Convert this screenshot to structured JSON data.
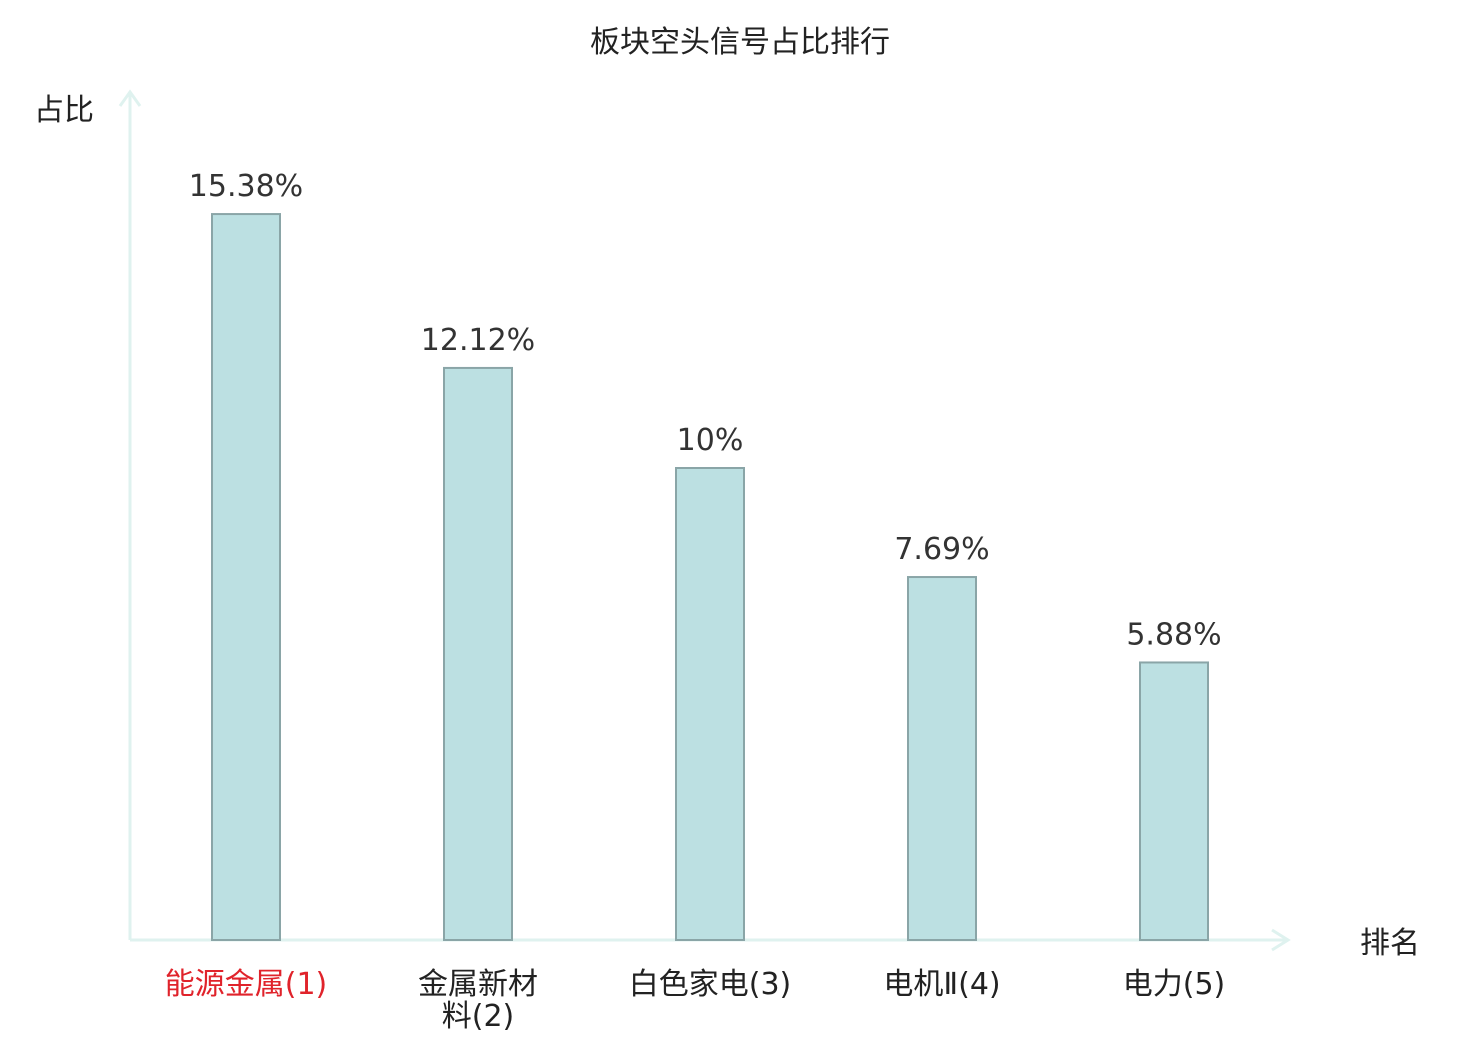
{
  "chart_data": {
    "type": "bar",
    "title": "板块空头信号占比排行",
    "ylabel": "占比",
    "xlabel": "排名",
    "categories": [
      {
        "name": "能源金属",
        "rank": "(1)",
        "lines": [
          "能源金属(1)"
        ],
        "highlight": true
      },
      {
        "name": "金属新材料",
        "rank": "(2)",
        "lines": [
          "金属新材",
          "料(2)"
        ],
        "highlight": false
      },
      {
        "name": "白色家电",
        "rank": "(3)",
        "lines": [
          "白色家电(3)"
        ],
        "highlight": false
      },
      {
        "name": "电机Ⅱ",
        "rank": "(4)",
        "lines": [
          "电机Ⅱ(4)"
        ],
        "highlight": false
      },
      {
        "name": "电力",
        "rank": "(5)",
        "lines": [
          "电力(5)"
        ],
        "highlight": false
      }
    ],
    "values": [
      15.38,
      12.12,
      10,
      7.69,
      5.88
    ],
    "value_labels": [
      "15.38%",
      "12.12%",
      "10%",
      "7.69%",
      "5.88%"
    ],
    "unit": "%",
    "grid": false,
    "colors": {
      "bar_fill": "#bce0e2",
      "bar_stroke": "#8aa5a7",
      "axis": "#dff2ef",
      "text": "#333333",
      "highlight_text": "#e0232b",
      "category_text": "#222222"
    }
  }
}
